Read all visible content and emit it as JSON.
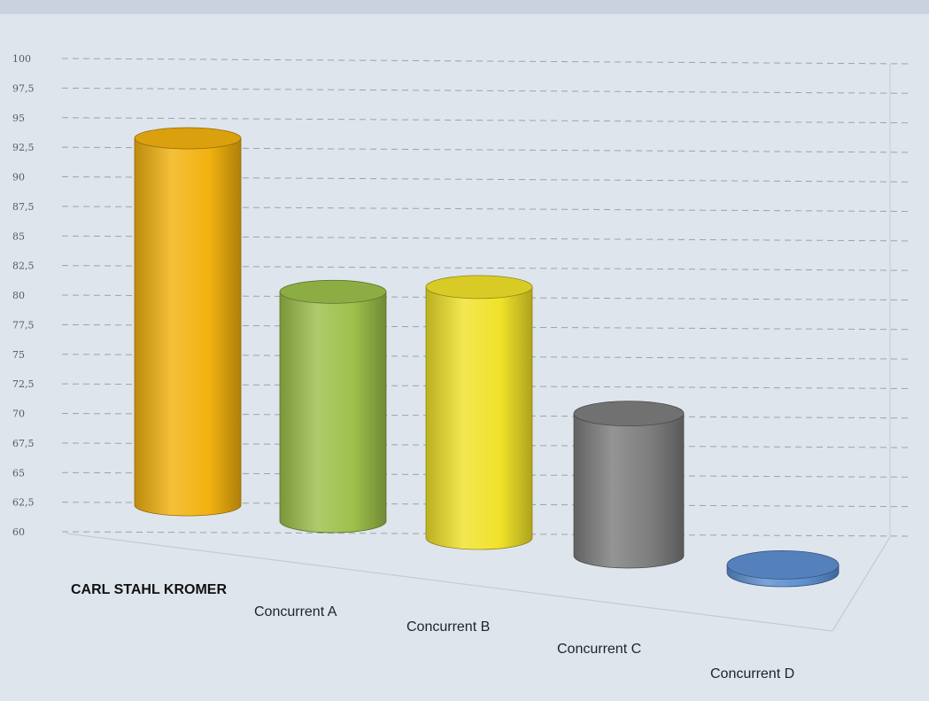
{
  "chart_data": {
    "type": "bar",
    "categories": [
      "CARL STAHL KROMER",
      "Concurrent A",
      "Concurrent B",
      "Concurrent C",
      "Concurrent D"
    ],
    "values": [
      94.5,
      80.5,
      81.5,
      71,
      61.5
    ],
    "ylim": [
      60,
      100
    ],
    "yticks": [
      "60",
      "62,5",
      "65",
      "67,5",
      "70",
      "72,5",
      "75",
      "77,5",
      "80",
      "82,5",
      "85",
      "87,5",
      "90",
      "92,5",
      "95",
      "97,5",
      "100"
    ],
    "grid": true,
    "bar_shape": "cylinder",
    "colors": [
      "#f2b20f",
      "#9cc04a",
      "#f0e22a",
      "#7d7d7d",
      "#5d8fd1"
    ],
    "bold_category_index": 0
  }
}
